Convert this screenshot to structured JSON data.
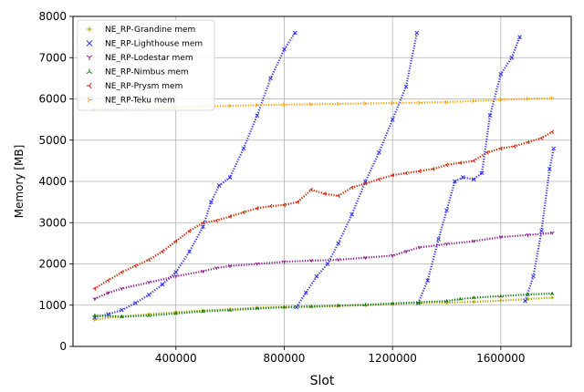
{
  "chart_data": {
    "type": "scatter",
    "title": "",
    "xlabel": "Slot",
    "ylabel": "Memory [MB]",
    "xlim": [
      20000,
      1860000
    ],
    "ylim": [
      0,
      8000
    ],
    "xticks": [
      400000,
      800000,
      1200000,
      1600000
    ],
    "xtick_labels": [
      "400000",
      "800000",
      "1200000",
      "1600000"
    ],
    "yticks": [
      0,
      1000,
      2000,
      3000,
      4000,
      5000,
      6000,
      7000,
      8000
    ],
    "ytick_labels": [
      "0",
      "1000",
      "2000",
      "3000",
      "4000",
      "5000",
      "6000",
      "7000",
      "8000"
    ],
    "grid": true,
    "legend_position": "top-left",
    "series": [
      {
        "name": "NE_RP-Grandine mem",
        "color": "#b5a600",
        "marker": "+",
        "points": [
          [
            100000,
            650
          ],
          [
            200000,
            730
          ],
          [
            300000,
            780
          ],
          [
            400000,
            830
          ],
          [
            500000,
            870
          ],
          [
            600000,
            900
          ],
          [
            700000,
            940
          ],
          [
            800000,
            960
          ],
          [
            900000,
            960
          ],
          [
            1000000,
            980
          ],
          [
            1100000,
            1000
          ],
          [
            1200000,
            1030
          ],
          [
            1300000,
            1050
          ],
          [
            1400000,
            1060
          ],
          [
            1500000,
            1080
          ],
          [
            1600000,
            1110
          ],
          [
            1700000,
            1150
          ],
          [
            1790000,
            1180
          ]
        ]
      },
      {
        "name": "NE_RP-Lighthouse mem",
        "color": "#3333ee",
        "marker": "x",
        "points": [
          [
            100000,
            700
          ],
          [
            150000,
            780
          ],
          [
            200000,
            880
          ],
          [
            250000,
            1050
          ],
          [
            300000,
            1250
          ],
          [
            350000,
            1500
          ],
          [
            400000,
            1800
          ],
          [
            450000,
            2300
          ],
          [
            500000,
            2900
          ],
          [
            530000,
            3500
          ],
          [
            560000,
            3900
          ],
          [
            600000,
            4100
          ],
          [
            650000,
            4800
          ],
          [
            700000,
            5600
          ],
          [
            750000,
            6500
          ],
          [
            800000,
            7200
          ],
          [
            840000,
            7600
          ],
          [
            845000,
            950
          ],
          [
            880000,
            1300
          ],
          [
            920000,
            1700
          ],
          [
            960000,
            2000
          ],
          [
            1000000,
            2500
          ],
          [
            1050000,
            3200
          ],
          [
            1100000,
            4000
          ],
          [
            1150000,
            4700
          ],
          [
            1200000,
            5500
          ],
          [
            1250000,
            6300
          ],
          [
            1290000,
            7600
          ],
          [
            1295000,
            1050
          ],
          [
            1330000,
            1600
          ],
          [
            1370000,
            2600
          ],
          [
            1400000,
            3300
          ],
          [
            1430000,
            4000
          ],
          [
            1460000,
            4100
          ],
          [
            1500000,
            4050
          ],
          [
            1530000,
            4200
          ],
          [
            1560000,
            5600
          ],
          [
            1600000,
            6600
          ],
          [
            1640000,
            7000
          ],
          [
            1670000,
            7500
          ],
          [
            1690000,
            1100
          ],
          [
            1720000,
            1700
          ],
          [
            1750000,
            2800
          ],
          [
            1780000,
            4300
          ],
          [
            1795000,
            4800
          ]
        ]
      },
      {
        "name": "NE_RP-Lodestar mem",
        "color": "#8a1a8a",
        "marker": "tri_down",
        "points": [
          [
            100000,
            1150
          ],
          [
            150000,
            1300
          ],
          [
            200000,
            1400
          ],
          [
            300000,
            1550
          ],
          [
            400000,
            1700
          ],
          [
            500000,
            1820
          ],
          [
            550000,
            1900
          ],
          [
            600000,
            1950
          ],
          [
            700000,
            2000
          ],
          [
            800000,
            2050
          ],
          [
            900000,
            2080
          ],
          [
            1000000,
            2100
          ],
          [
            1100000,
            2150
          ],
          [
            1200000,
            2200
          ],
          [
            1250000,
            2300
          ],
          [
            1300000,
            2400
          ],
          [
            1400000,
            2480
          ],
          [
            1500000,
            2550
          ],
          [
            1600000,
            2650
          ],
          [
            1700000,
            2700
          ],
          [
            1790000,
            2750
          ]
        ]
      },
      {
        "name": "NE_RP-Nimbus mem",
        "color": "#0a7a0a",
        "marker": "tri_up",
        "points": [
          [
            100000,
            750
          ],
          [
            200000,
            720
          ],
          [
            300000,
            750
          ],
          [
            400000,
            800
          ],
          [
            500000,
            850
          ],
          [
            600000,
            880
          ],
          [
            700000,
            920
          ],
          [
            800000,
            950
          ],
          [
            900000,
            970
          ],
          [
            1000000,
            990
          ],
          [
            1100000,
            1010
          ],
          [
            1200000,
            1040
          ],
          [
            1300000,
            1070
          ],
          [
            1400000,
            1100
          ],
          [
            1450000,
            1150
          ],
          [
            1500000,
            1180
          ],
          [
            1600000,
            1220
          ],
          [
            1700000,
            1260
          ],
          [
            1790000,
            1280
          ]
        ]
      },
      {
        "name": "NE_RP-Prysm mem",
        "color": "#cc2200",
        "marker": "tri_left",
        "points": [
          [
            100000,
            1400
          ],
          [
            150000,
            1600
          ],
          [
            200000,
            1800
          ],
          [
            250000,
            1950
          ],
          [
            300000,
            2100
          ],
          [
            350000,
            2300
          ],
          [
            400000,
            2550
          ],
          [
            450000,
            2800
          ],
          [
            500000,
            3000
          ],
          [
            550000,
            3050
          ],
          [
            600000,
            3150
          ],
          [
            650000,
            3250
          ],
          [
            700000,
            3350
          ],
          [
            750000,
            3400
          ],
          [
            800000,
            3430
          ],
          [
            850000,
            3500
          ],
          [
            900000,
            3800
          ],
          [
            950000,
            3700
          ],
          [
            1000000,
            3650
          ],
          [
            1050000,
            3850
          ],
          [
            1100000,
            3950
          ],
          [
            1150000,
            4050
          ],
          [
            1200000,
            4150
          ],
          [
            1250000,
            4200
          ],
          [
            1300000,
            4250
          ],
          [
            1350000,
            4300
          ],
          [
            1400000,
            4400
          ],
          [
            1450000,
            4450
          ],
          [
            1500000,
            4500
          ],
          [
            1550000,
            4700
          ],
          [
            1600000,
            4800
          ],
          [
            1650000,
            4850
          ],
          [
            1700000,
            4950
          ],
          [
            1750000,
            5050
          ],
          [
            1790000,
            5200
          ]
        ]
      },
      {
        "name": "NE_RP-Teku mem",
        "color": "#ffa200",
        "marker": "tri_right",
        "points": [
          [
            100000,
            5750
          ],
          [
            200000,
            5760
          ],
          [
            300000,
            5780
          ],
          [
            400000,
            5800
          ],
          [
            500000,
            5820
          ],
          [
            600000,
            5830
          ],
          [
            700000,
            5850
          ],
          [
            800000,
            5860
          ],
          [
            900000,
            5870
          ],
          [
            1000000,
            5880
          ],
          [
            1100000,
            5890
          ],
          [
            1200000,
            5900
          ],
          [
            1300000,
            5910
          ],
          [
            1400000,
            5920
          ],
          [
            1500000,
            5950
          ],
          [
            1600000,
            5980
          ],
          [
            1700000,
            6000
          ],
          [
            1790000,
            6020
          ]
        ]
      }
    ]
  }
}
